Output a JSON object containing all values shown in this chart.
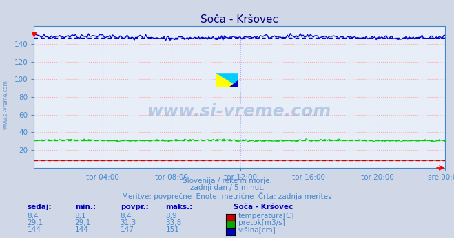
{
  "title": "Soča - Kršovec",
  "background_color": "#d0d8e8",
  "plot_bg_color": "#e8eef8",
  "grid_color": "#ffaaaa",
  "grid_color2": "#ccccff",
  "xlabel_color": "#4488cc",
  "ylabel_color": "#4488cc",
  "title_color": "#000080",
  "n_points": 288,
  "ylim": [
    0,
    160
  ],
  "yticks": [
    20,
    40,
    60,
    80,
    100,
    120,
    140
  ],
  "temp_min": 8.1,
  "temp_max": 8.9,
  "temp_avg": 8.4,
  "temp_curr": 8.4,
  "flow_min": 29.1,
  "flow_max": 33.8,
  "flow_avg": 31.3,
  "flow_curr": 29.1,
  "height_min": 144,
  "height_max": 151,
  "height_avg": 147,
  "height_curr": 144,
  "xtick_labels": [
    "tor 04:00",
    "tor 08:00",
    "tor 12:00",
    "tor 16:00",
    "tor 20:00",
    "sre 00:00"
  ],
  "xtick_positions": [
    48,
    96,
    144,
    192,
    240,
    287
  ],
  "subtitle1": "Slovenija / reke in morje.",
  "subtitle2": "zadnji dan / 5 minut.",
  "subtitle3": "Meritve: povprečne  Enote: metrične  Črta: zadnja meritev",
  "legend_title": "Soča - Kršovec",
  "legend_items": [
    "temperatura[C]",
    "pretok[m3/s]",
    "višina[cm]"
  ],
  "legend_colors": [
    "#cc0000",
    "#00aa00",
    "#0000cc"
  ],
  "table_headers": [
    "sedaj:",
    "min.:",
    "povpr.:",
    "maks.:"
  ],
  "table_data": [
    [
      "8,4",
      "8,1",
      "8,4",
      "8,9"
    ],
    [
      "29,1",
      "29,1",
      "31,3",
      "33,8"
    ],
    [
      "144",
      "144",
      "147",
      "151"
    ]
  ],
  "temp_color": "#cc0000",
  "flow_color": "#00cc00",
  "height_color": "#0000cc",
  "watermark": "www.si-vreme.com",
  "watermark_color": "#4477bb",
  "sidebar_text": "www.si-vreme.com"
}
